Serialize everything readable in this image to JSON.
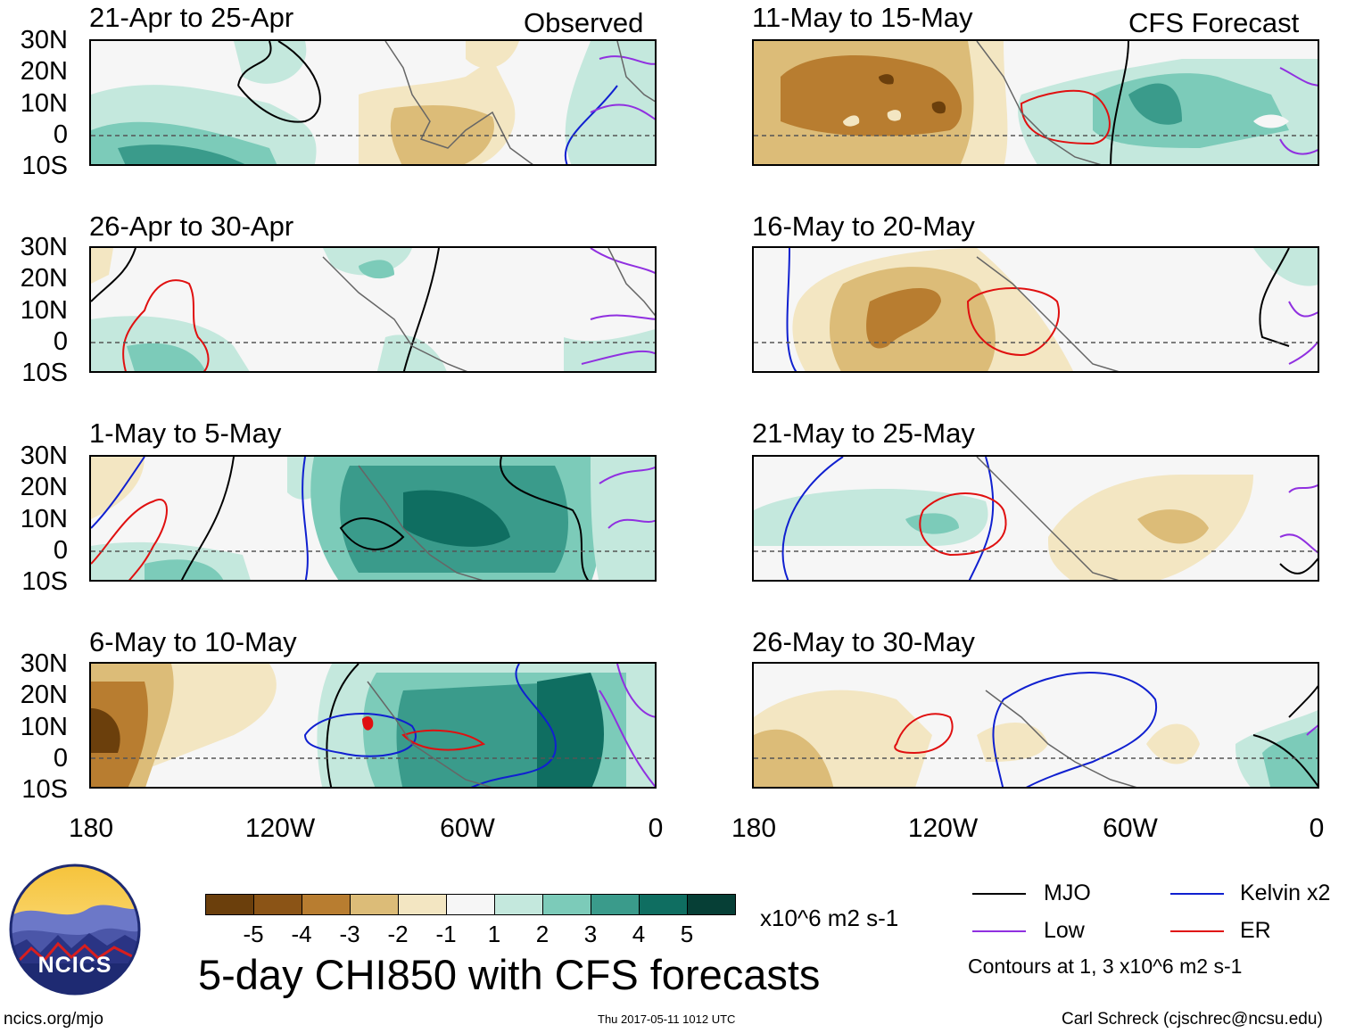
{
  "header": {
    "observed_label": "Observed",
    "forecast_label": "CFS Forecast"
  },
  "panels_left": [
    {
      "title": "21-Apr to 25-Apr"
    },
    {
      "title": "26-Apr to 30-Apr"
    },
    {
      "title": "1-May to 5-May"
    },
    {
      "title": "6-May to 10-May"
    }
  ],
  "panels_right": [
    {
      "title": "11-May to 15-May"
    },
    {
      "title": "16-May to 20-May"
    },
    {
      "title": "21-May to 25-May"
    },
    {
      "title": "26-May to 30-May"
    }
  ],
  "axes": {
    "lat_labels": [
      "30N",
      "20N",
      "10N",
      "0",
      "10S"
    ],
    "lon_labels": [
      "180",
      "120W",
      "60W",
      "0"
    ]
  },
  "colorbar": {
    "tick_labels": [
      "-5",
      "-4",
      "-3",
      "-2",
      "-1",
      "1",
      "2",
      "3",
      "4",
      "5"
    ],
    "colors": [
      "#6b3f0c",
      "#8b5416",
      "#b87d30",
      "#dcbc78",
      "#f3e6c2",
      "#f6f6f6",
      "#c4e8dd",
      "#7ccbb9",
      "#3a9b8b",
      "#0f6e61",
      "#063f36"
    ],
    "units": "x10^6 m2 s-1"
  },
  "title": "5-day CHI850 with CFS forecasts",
  "legend": {
    "items": [
      {
        "label": "MJO",
        "color": "#000000"
      },
      {
        "label": "Kelvin x2",
        "color": "#1020d0"
      },
      {
        "label": "Low",
        "color": "#9030e0"
      },
      {
        "label": "ER",
        "color": "#e01010"
      }
    ],
    "note": "Contours at 1, 3 x10^6 m2 s-1"
  },
  "logo": {
    "text": "NCICS"
  },
  "footer": {
    "left": "ncics.org/mjo",
    "center": "Thu 2017-05-11 1012 UTC",
    "right": "Carl Schreck (cjschrec@ncsu.edu)"
  }
}
